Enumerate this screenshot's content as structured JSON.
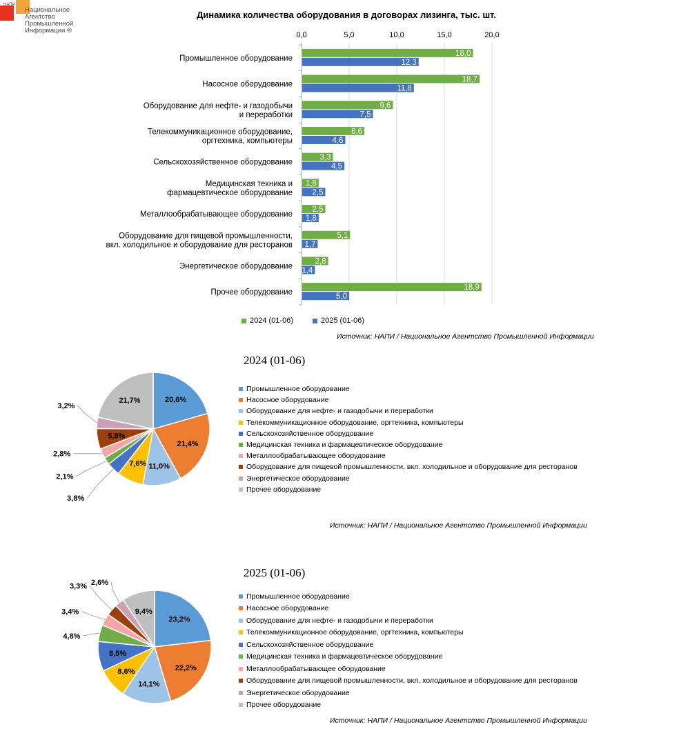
{
  "logo": {
    "tag": "НАПИ",
    "lines": [
      "Национальное",
      "Агентство",
      "Промышленной",
      "Информации ®"
    ]
  },
  "chart_data": [
    {
      "type": "bar",
      "orientation": "horizontal",
      "title": "Динамика количества оборудования в договорах лизинга, тыс. шт.",
      "categories": [
        "Промышленное оборудование",
        "Насосное оборудование",
        "Оборудование для нефте- и газодобычи\nи переработки",
        "Телекоммуникационное оборудование,\nоргтехника, компьютеры",
        "Сельскохозяйственное оборудование",
        "Медицинская техника и\nфармацевтическое оборудование",
        "Металлообрабатывающее оборудование",
        "Оборудование для пищевой промышленности,\nвкл. холодильное и оборудование для ресторанов",
        "Энергетическое оборудование",
        "Прочее оборудование"
      ],
      "series": [
        {
          "name": "2024 (01-06)",
          "color": "#70ad47",
          "values": [
            18.0,
            18.7,
            9.6,
            6.6,
            3.3,
            1.8,
            2.5,
            5.1,
            2.8,
            18.9
          ],
          "labels": [
            "18,0",
            "18,7",
            "9,6",
            "6,6",
            "3,3",
            "1,8",
            "2,5",
            "5,1",
            "2,8",
            "18,9"
          ]
        },
        {
          "name": "2025 (01-06)",
          "color": "#4472c4",
          "values": [
            12.3,
            11.8,
            7.5,
            4.6,
            4.5,
            2.5,
            1.8,
            1.7,
            1.4,
            5.0
          ],
          "labels": [
            "12,3",
            "11,8",
            "7,5",
            "4,6",
            "4,5",
            "2,5",
            "1,8",
            "1,7",
            "1,4",
            "5,0"
          ]
        }
      ],
      "xlim": [
        0,
        20
      ],
      "ticks": [
        "0,0",
        "5,0",
        "10,0",
        "15,0",
        "20,0"
      ],
      "axis_position": "top",
      "grid": true,
      "legend": "bottom",
      "source": "Источник: НАПИ / Национальное Агентство Промышленной Информации"
    },
    {
      "type": "pie",
      "title": "2024 (01-06)",
      "categories": [
        "Промышленное оборудование",
        "Насосное оборудование",
        "Оборудование для нефте- и газодобычи и переработки",
        "Телекоммуникационное оборудование, оргтехника, компьютеры",
        "Сельскохозяйственное оборудование",
        "Медицинская техника и фармацевтическое оборудование",
        "Металлообрабатывающее оборудование",
        "Оборудование для пищевой промышленности, вкл. холодильное и оборудование для ресторанов",
        "Энергетическое оборудование",
        "Прочее оборудование"
      ],
      "values": [
        20.6,
        21.4,
        11.0,
        7.6,
        3.8,
        2.1,
        2.8,
        5.9,
        3.2,
        21.7
      ],
      "labels": [
        "20,6%",
        "21,4%",
        "11,0%",
        "7,6%",
        "3,8%",
        "2,1%",
        "2,8%",
        "5,9%",
        "3,2%",
        "21,7%"
      ],
      "colors": [
        "#5b9bd5",
        "#ed7d31",
        "#9dc3e6",
        "#ffc000",
        "#4472c4",
        "#70ad47",
        "#f4a6a6",
        "#9c3f0d",
        "#c9a0b4",
        "#bfbfbf"
      ],
      "legend": "right",
      "source": "Источник: НАПИ / Национальное Агентство Промышленной Информации"
    },
    {
      "type": "pie",
      "title": "2025 (01-06)",
      "categories": [
        "Промышленное оборудование",
        "Насосное оборудование",
        "Оборудование для нефте- и газодобычи и переработки",
        "Телекоммуникационное оборудование, оргтехника, компьютеры",
        "Сельскохозяйственное оборудование",
        "Медицинская техника и фармацевтическое оборудование",
        "Металлообрабатывающее оборудование",
        "Оборудование для пищевой промышленности, вкл. холодильное и оборудование для ресторанов",
        "Энергетическое оборудование",
        "Прочее оборудование"
      ],
      "values": [
        23.2,
        22.2,
        14.1,
        8.6,
        8.5,
        4.8,
        3.4,
        3.3,
        2.6,
        9.4
      ],
      "labels": [
        "23,2%",
        "22,2%",
        "14,1%",
        "8,6%",
        "8,5%",
        "4,8%",
        "3,4%",
        "3,3%",
        "2,6%",
        "9,4%"
      ],
      "colors": [
        "#5b9bd5",
        "#ed7d31",
        "#9dc3e6",
        "#ffc000",
        "#4472c4",
        "#70ad47",
        "#f4a6a6",
        "#9c3f0d",
        "#c9a0b4",
        "#bfbfbf"
      ],
      "legend": "right",
      "source": "Источник: НАПИ / Национальное Агентство Промышленной Информации"
    }
  ]
}
